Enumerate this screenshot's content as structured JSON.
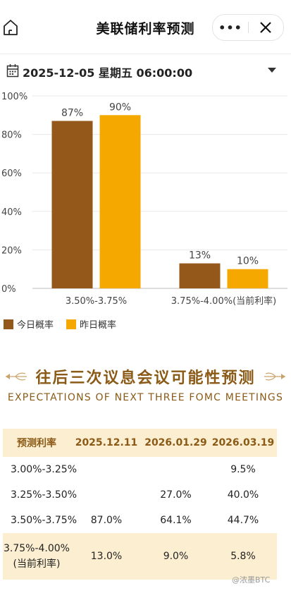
{
  "header": {
    "title": "美联储利率预测",
    "more_label": "•••"
  },
  "date": {
    "text": "2025-12-05 星期五 06:00:00"
  },
  "chart_data": {
    "type": "bar",
    "categories": [
      "3.50%-3.75%",
      "3.75%-4.00%(当前利率)"
    ],
    "series": [
      {
        "name": "今日概率",
        "values": [
          87,
          13
        ],
        "labels": [
          "87%",
          "13%"
        ],
        "color": "#94591a"
      },
      {
        "name": "昨日概率",
        "values": [
          90,
          10
        ],
        "labels": [
          "90%",
          "10%"
        ],
        "color": "#f5a800"
      }
    ],
    "yticks": [
      "100%",
      "80%",
      "60%",
      "40%",
      "20%",
      "0%"
    ],
    "ylim": [
      0,
      100
    ],
    "grid": true
  },
  "section": {
    "title": "往后三次议息会议可能性预测",
    "subtitle": "EXPECTATIONS OF NEXT THREE FOMC MEETINGS"
  },
  "table": {
    "headers": [
      "预测利率",
      "2025.12.11",
      "2026.01.29",
      "2026.03.19"
    ],
    "rows": [
      [
        "3.00%-3.25%",
        "",
        "",
        "9.5%"
      ],
      [
        "3.25%-3.50%",
        "",
        "27.0%",
        "40.0%"
      ],
      [
        "3.50%-3.75%",
        "87.0%",
        "64.1%",
        "44.7%"
      ]
    ],
    "last_row": {
      "label_line1": "3.75%-4.00%",
      "label_line2": "(当前利率)",
      "values": [
        "13.0%",
        "9.0%",
        "5.8%"
      ]
    }
  },
  "watermark": {
    "text": "@浓墨BTC"
  },
  "colors": {
    "accent": "#8b5a16",
    "header_bg": "#fcefd1",
    "bar_today": "#94591a",
    "bar_yesterday": "#f5a800"
  }
}
